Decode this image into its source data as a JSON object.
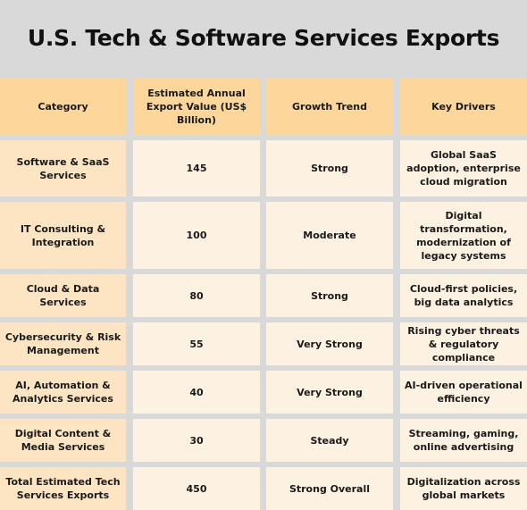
{
  "title": "U.S. Tech & Software Services Exports",
  "headers": [
    "Category",
    "Estimated Annual Export Value (US$ Billion)",
    "Growth Trend",
    "Key Drivers"
  ],
  "rows": [
    [
      "Software & SaaS Services",
      "145",
      "Strong",
      "Global SaaS adoption, enterprise cloud migration"
    ],
    [
      "IT Consulting & Integration",
      "100",
      "Moderate",
      "Digital transformation, modernization of legacy systems"
    ],
    [
      "Cloud & Data Services",
      "80",
      "Strong",
      "Cloud-first policies, big data analytics"
    ],
    [
      "Cybersecurity & Risk Management",
      "55",
      "Very Strong",
      "Rising cyber threats & regulatory compliance"
    ],
    [
      "AI, Automation & Analytics Services",
      "40",
      "Very Strong",
      "AI-driven operational efficiency"
    ],
    [
      "Digital Content & Media Services",
      "30",
      "Steady",
      "Streaming, gaming, online advertising"
    ],
    [
      "Total Estimated Tech Services Exports",
      "450",
      "Strong Overall",
      "Digitalization across global markets"
    ]
  ]
}
